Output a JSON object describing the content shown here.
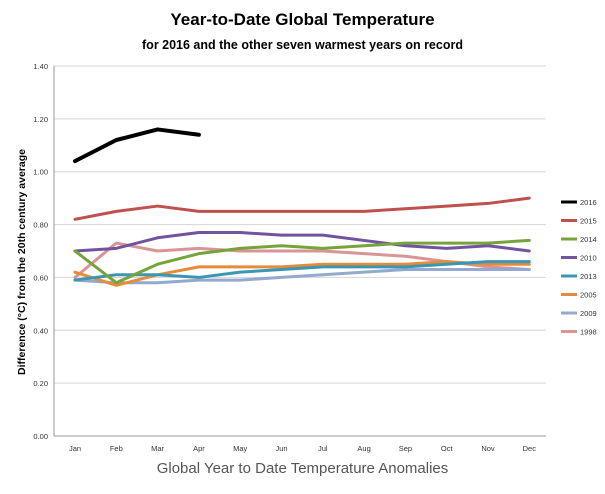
{
  "chart_data": {
    "type": "line",
    "title": "Year-to-Date Global Temperature",
    "subtitle": "for 2016 and the other seven warmest years on record",
    "xlabel": "",
    "ylabel": "Difference (°C) from the 20th century average",
    "caption": "Global Year to Date Temperature Anomalies",
    "categories": [
      "Jan",
      "Feb",
      "Mar",
      "Apr",
      "May",
      "Jun",
      "Jul",
      "Aug",
      "Sep",
      "Oct",
      "Nov",
      "Dec"
    ],
    "ylim": [
      0,
      1.4
    ],
    "yticks": [
      "0.00",
      "0.20",
      "0.40",
      "0.60",
      "0.80",
      "1.00",
      "1.20",
      "1.40"
    ],
    "grid": "horizontal",
    "legend_position": "right",
    "series": [
      {
        "name": "2016",
        "color": "#000000",
        "values": [
          1.04,
          1.12,
          1.16,
          1.14,
          null,
          null,
          null,
          null,
          null,
          null,
          null,
          null
        ]
      },
      {
        "name": "2015",
        "color": "#c0504d",
        "values": [
          0.82,
          0.85,
          0.87,
          0.85,
          0.85,
          0.85,
          0.85,
          0.85,
          0.86,
          0.87,
          0.88,
          0.9
        ]
      },
      {
        "name": "2014",
        "color": "#77a33b",
        "values": [
          0.7,
          0.58,
          0.65,
          0.69,
          0.71,
          0.72,
          0.71,
          0.72,
          0.73,
          0.73,
          0.73,
          0.74
        ]
      },
      {
        "name": "2010",
        "color": "#7153a0",
        "values": [
          0.7,
          0.71,
          0.75,
          0.77,
          0.77,
          0.76,
          0.76,
          0.74,
          0.72,
          0.71,
          0.72,
          0.7
        ]
      },
      {
        "name": "2013",
        "color": "#3a97b4",
        "values": [
          0.59,
          0.61,
          0.61,
          0.6,
          0.62,
          0.63,
          0.64,
          0.64,
          0.64,
          0.65,
          0.66,
          0.66
        ]
      },
      {
        "name": "2005",
        "color": "#e58b3a",
        "values": [
          0.62,
          0.57,
          0.61,
          0.64,
          0.64,
          0.64,
          0.65,
          0.65,
          0.65,
          0.66,
          0.65,
          0.65
        ]
      },
      {
        "name": "2009",
        "color": "#93a9cf",
        "values": [
          0.59,
          0.58,
          0.58,
          0.59,
          0.59,
          0.6,
          0.61,
          0.62,
          0.63,
          0.63,
          0.63,
          0.63
        ]
      },
      {
        "name": "1998",
        "color": "#d99594",
        "values": [
          0.6,
          0.73,
          0.7,
          0.71,
          0.7,
          0.7,
          0.7,
          0.69,
          0.68,
          0.66,
          0.64,
          0.63
        ]
      }
    ]
  }
}
